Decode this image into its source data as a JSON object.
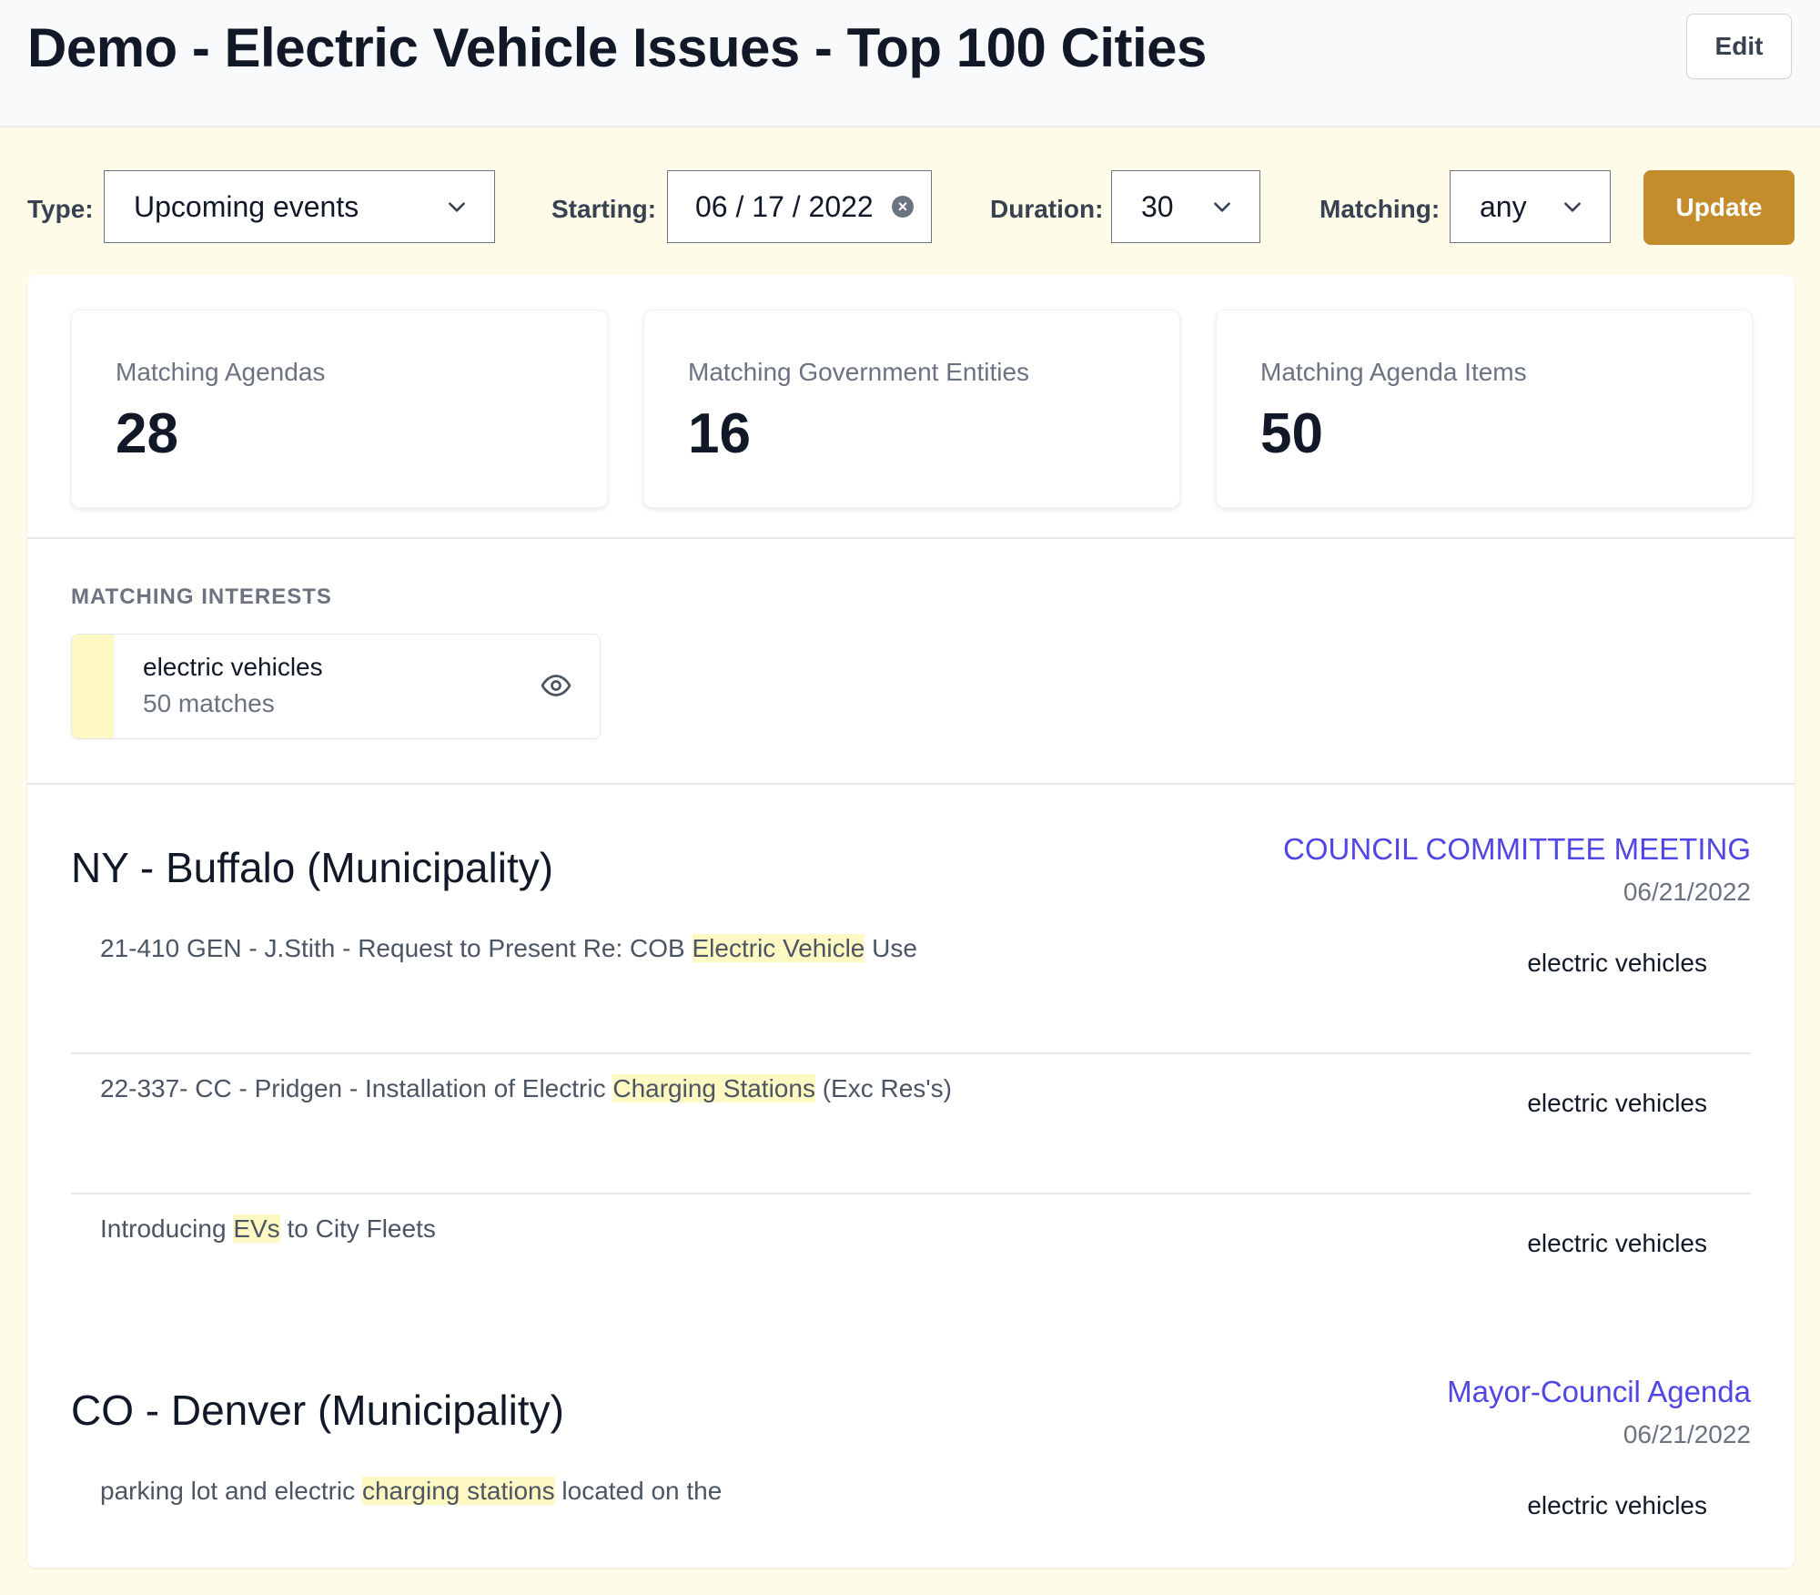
{
  "header": {
    "title": "Demo - Electric Vehicle Issues - Top 100 Cities",
    "edit_label": "Edit"
  },
  "filters": {
    "type_label": "Type:",
    "type_value": "Upcoming events",
    "starting_label": "Starting:",
    "starting_value": "06 / 17 / 2022",
    "duration_label": "Duration:",
    "duration_value": "30",
    "matching_label": "Matching:",
    "matching_value": "any",
    "update_label": "Update"
  },
  "stats": [
    {
      "label": "Matching Agendas",
      "value": "28"
    },
    {
      "label": "Matching Government Entities",
      "value": "16"
    },
    {
      "label": "Matching Agenda Items",
      "value": "50"
    }
  ],
  "interests": {
    "section_label": "MATCHING INTERESTS",
    "items": [
      {
        "name": "electric vehicles",
        "count": "50 matches",
        "color": "#fef9c3",
        "icon": "eye-icon"
      }
    ]
  },
  "entities": [
    {
      "name": "NY - Buffalo (Municipality)",
      "meeting_type": "COUNCIL COMMITTEE MEETING",
      "meeting_date": "06/21/2022",
      "items": [
        {
          "before": "21-410 GEN - J.Stith - Request to Present Re: COB ",
          "highlight": "Electric Vehicle",
          "after": " Use",
          "tag": "electric vehicles"
        },
        {
          "before": "22-337- CC - Pridgen - Installation of Electric ",
          "highlight": "Charging Stations",
          "after": " (Exc Res's)",
          "tag": "electric vehicles"
        },
        {
          "before": "Introducing ",
          "highlight": "EVs",
          "after": " to City Fleets",
          "tag": "electric vehicles"
        }
      ]
    },
    {
      "name": "CO - Denver (Municipality)",
      "meeting_type": "Mayor-Council Agenda",
      "meeting_date": "06/21/2022",
      "items": [
        {
          "before": "parking lot and electric ",
          "highlight": "charging stations",
          "after": " located on the",
          "tag": "electric vehicles"
        }
      ]
    }
  ],
  "colors": {
    "accent_button": "#c58c2e",
    "link": "#4f46e5",
    "highlight": "#fef9c3",
    "page_background": "#fefce8"
  }
}
